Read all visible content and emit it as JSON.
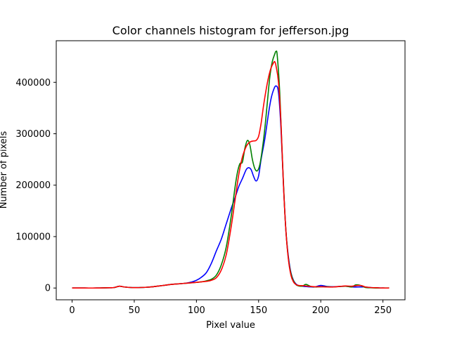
{
  "chart_data": {
    "type": "line",
    "title": "Color channels histogram for jefferson.jpg",
    "xlabel": "Pixel value",
    "ylabel": "Number of pixels",
    "xlim": [
      -12.75,
      267.75
    ],
    "ylim": [
      -22900,
      480900
    ],
    "xticks": [
      0,
      50,
      100,
      150,
      200,
      250
    ],
    "yticks": [
      0,
      100000,
      200000,
      300000,
      400000
    ],
    "grid": false,
    "legend": "none",
    "series": [
      {
        "color": "#0000ff",
        "x": [
          0,
          10,
          20,
          30,
          34,
          38,
          42,
          46,
          50,
          55,
          60,
          65,
          70,
          75,
          80,
          85,
          90,
          95,
          100,
          104,
          108,
          112,
          116,
          120,
          124,
          128,
          131,
          134,
          137,
          140,
          142,
          144,
          146,
          148,
          150,
          152,
          155,
          158,
          160,
          162,
          164,
          166,
          168,
          170,
          172,
          174,
          176,
          178,
          180,
          182,
          185,
          190,
          195,
          200,
          205,
          210,
          215,
          220,
          225,
          230,
          235,
          240,
          245,
          250,
          255
        ],
        "y": [
          0,
          0,
          0,
          500,
          1000,
          3500,
          2000,
          1200,
          800,
          1000,
          1500,
          2500,
          4000,
          5500,
          7000,
          8000,
          9000,
          11000,
          15000,
          21000,
          30000,
          48000,
          72000,
          95000,
          125000,
          155000,
          175000,
          197000,
          213000,
          230000,
          234000,
          230000,
          217000,
          208000,
          218000,
          250000,
          290000,
          340000,
          368000,
          385000,
          393000,
          380000,
          310000,
          200000,
          110000,
          60000,
          30000,
          15000,
          8000,
          5000,
          3500,
          2500,
          2000,
          5000,
          3000,
          2500,
          3000,
          3500,
          2000,
          2000,
          2000,
          1000,
          500,
          0,
          0
        ]
      },
      {
        "color": "#008000",
        "x": [
          0,
          10,
          20,
          30,
          34,
          38,
          42,
          46,
          50,
          55,
          60,
          65,
          70,
          75,
          80,
          85,
          90,
          95,
          100,
          104,
          108,
          112,
          116,
          120,
          124,
          128,
          131,
          133,
          135,
          137,
          139,
          141,
          143,
          145,
          147,
          149,
          151,
          153,
          155,
          157,
          159,
          161,
          163,
          164,
          165,
          167,
          169,
          171,
          173,
          175,
          177,
          179,
          181,
          185,
          188,
          192,
          196,
          200,
          205,
          210,
          215,
          220,
          225,
          228,
          232,
          236,
          240,
          245,
          250,
          255
        ],
        "y": [
          0,
          0,
          0,
          500,
          1000,
          3500,
          2000,
          1200,
          800,
          1000,
          1500,
          2500,
          4000,
          5500,
          7000,
          8000,
          9000,
          10000,
          11000,
          12000,
          14000,
          17000,
          25000,
          45000,
          80000,
          140000,
          195000,
          225000,
          242000,
          245000,
          272000,
          287000,
          278000,
          250000,
          232000,
          228000,
          240000,
          270000,
          310000,
          360000,
          410000,
          440000,
          455000,
          460000,
          452000,
          380000,
          260000,
          150000,
          80000,
          40000,
          20000,
          10000,
          5000,
          3500,
          7000,
          3000,
          2000,
          2500,
          2500,
          2000,
          3000,
          3500,
          2000,
          6000,
          5000,
          1000,
          500,
          0,
          0,
          0
        ]
      },
      {
        "color": "#ff0000",
        "x": [
          0,
          10,
          20,
          30,
          34,
          38,
          42,
          46,
          50,
          55,
          60,
          65,
          70,
          75,
          80,
          85,
          90,
          95,
          100,
          104,
          108,
          112,
          116,
          120,
          124,
          128,
          131,
          134,
          137,
          140,
          142,
          144,
          146,
          148,
          150,
          152,
          154,
          156,
          158,
          160,
          162,
          163,
          164,
          166,
          168,
          170,
          172,
          174,
          176,
          178,
          180,
          182,
          186,
          190,
          195,
          200,
          205,
          210,
          215,
          220,
          225,
          230,
          233,
          236,
          240,
          245,
          250,
          255
        ],
        "y": [
          0,
          0,
          0,
          500,
          1000,
          3500,
          2000,
          1200,
          800,
          1000,
          1500,
          2500,
          4000,
          5500,
          7000,
          8000,
          9000,
          10000,
          11000,
          12000,
          13000,
          15000,
          20000,
          35000,
          65000,
          120000,
          170000,
          220000,
          255000,
          275000,
          282000,
          285000,
          286000,
          287000,
          295000,
          320000,
          355000,
          385000,
          410000,
          428000,
          438000,
          440000,
          432000,
          400000,
          320000,
          200000,
          110000,
          55000,
          25000,
          12000,
          7000,
          5000,
          4500,
          3500,
          2500,
          2500,
          2000,
          2000,
          3000,
          4000,
          3500,
          5000,
          4500,
          2000,
          1000,
          500,
          0,
          0
        ]
      }
    ]
  }
}
